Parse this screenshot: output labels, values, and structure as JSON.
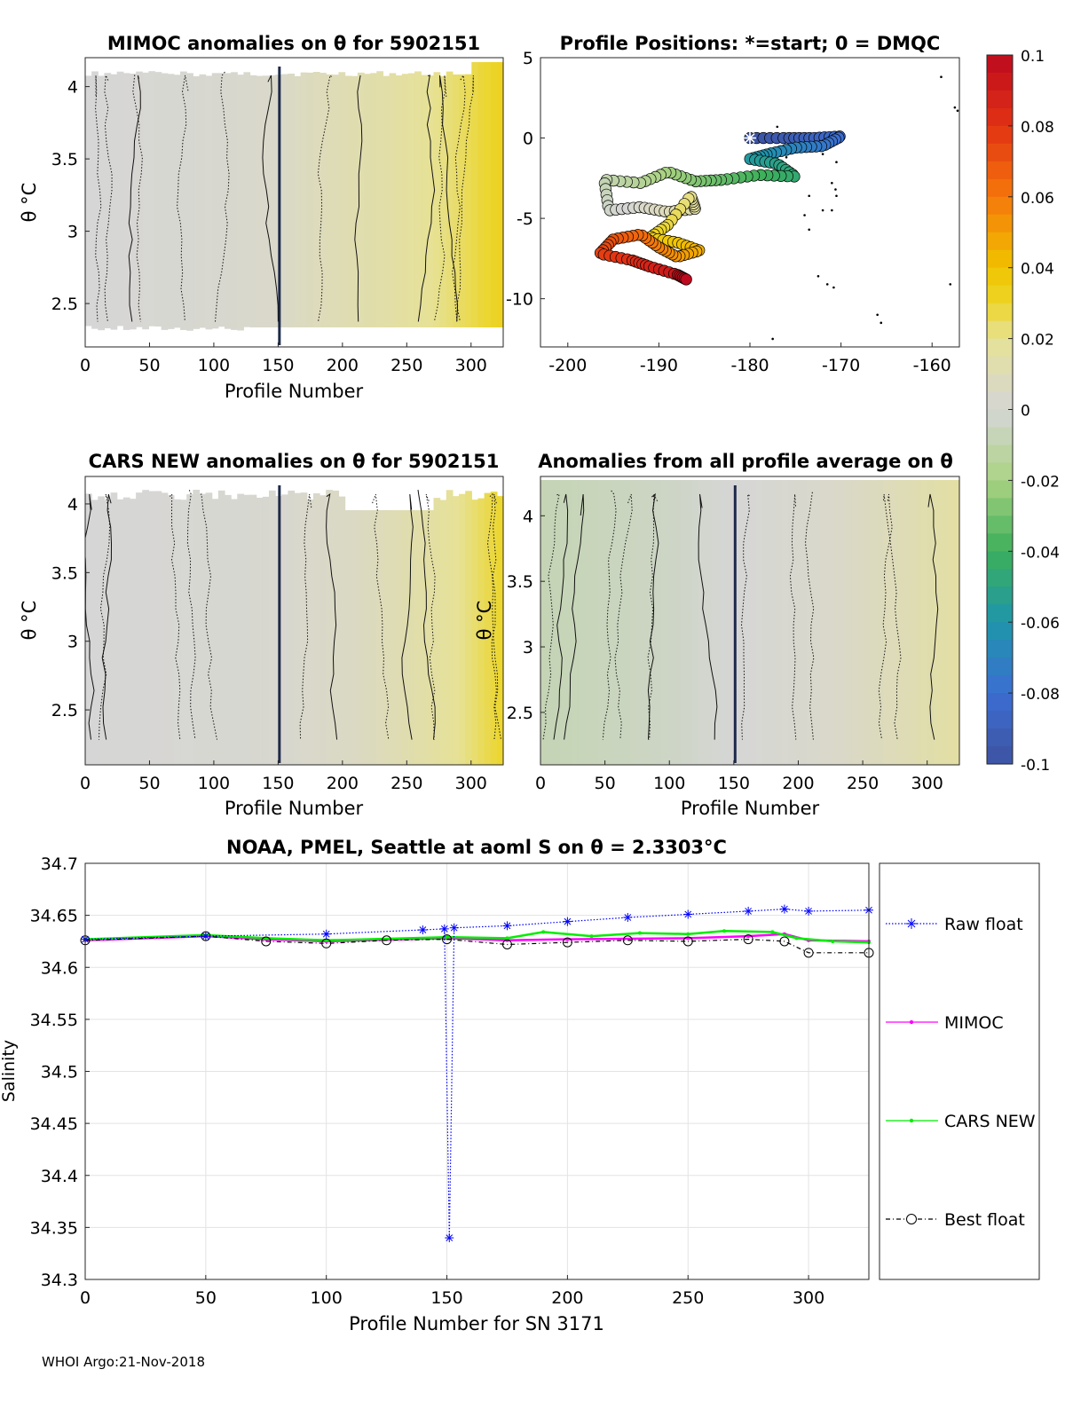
{
  "footer": "WHOI Argo:21-Nov-2018",
  "colorbar": {
    "ticks": [
      "0.1",
      "0.08",
      "0.06",
      "0.04",
      "0.02",
      "0",
      "-0.02",
      "-0.04",
      "-0.06",
      "-0.08",
      "-0.1"
    ],
    "range": [
      -0.1,
      0.1
    ]
  },
  "chart_data": [
    {
      "type": "heatmap",
      "title": "MIMOC anomalies on θ  for 5902151",
      "xlabel": "Profile Number",
      "ylabel": "θ °C",
      "xlim": [
        0,
        325
      ],
      "ylim": [
        2.2,
        4.2
      ],
      "xticks": [
        "0",
        "50",
        "100",
        "150",
        "200",
        "250",
        "300"
      ],
      "yticks": [
        "2.5",
        "3",
        "3.5",
        "4"
      ],
      "anomaly_by_profile": [
        {
          "x": 0,
          "v": 0.0
        },
        {
          "x": 100,
          "v": 0.002
        },
        {
          "x": 150,
          "v": 0.004
        },
        {
          "x": 175,
          "v": 0.008
        },
        {
          "x": 230,
          "v": 0.014
        },
        {
          "x": 280,
          "v": 0.022
        },
        {
          "x": 325,
          "v": 0.032
        }
      ]
    },
    {
      "type": "scatter",
      "title": "Profile Positions: *=start; 0 = DMQC",
      "xlim": [
        -203,
        -157
      ],
      "ylim": [
        -13,
        5
      ],
      "xticks": [
        "-200",
        "-190",
        "-180",
        "-170",
        "-160"
      ],
      "yticks": [
        "-10",
        "-5",
        "0",
        "5"
      ],
      "start": {
        "lon": -180.0,
        "lat": 0.0
      },
      "track": [
        {
          "lon": -180.0,
          "lat": 0.0
        },
        {
          "lon": -176.0,
          "lat": 0.0
        },
        {
          "lon": -173.0,
          "lat": 0.0
        },
        {
          "lon": -170.0,
          "lat": 0.1
        },
        {
          "lon": -172.0,
          "lat": -0.5
        },
        {
          "lon": -175.0,
          "lat": -0.6
        },
        {
          "lon": -178.0,
          "lat": -1.0
        },
        {
          "lon": -180.0,
          "lat": -1.3
        },
        {
          "lon": -177.0,
          "lat": -1.6
        },
        {
          "lon": -175.0,
          "lat": -2.4
        },
        {
          "lon": -179.0,
          "lat": -2.3
        },
        {
          "lon": -183.0,
          "lat": -2.6
        },
        {
          "lon": -186.0,
          "lat": -2.7
        },
        {
          "lon": -189.0,
          "lat": -2.1
        },
        {
          "lon": -192.0,
          "lat": -2.8
        },
        {
          "lon": -196.0,
          "lat": -2.6
        },
        {
          "lon": -195.5,
          "lat": -4.5
        },
        {
          "lon": -192.0,
          "lat": -4.3
        },
        {
          "lon": -189.0,
          "lat": -4.6
        },
        {
          "lon": -186.0,
          "lat": -4.4
        },
        {
          "lon": -186.5,
          "lat": -3.6
        },
        {
          "lon": -189.0,
          "lat": -5.4
        },
        {
          "lon": -191.0,
          "lat": -6.2
        },
        {
          "lon": -188.0,
          "lat": -6.5
        },
        {
          "lon": -185.5,
          "lat": -7.0
        },
        {
          "lon": -188.0,
          "lat": -7.4
        },
        {
          "lon": -190.0,
          "lat": -6.8
        },
        {
          "lon": -192.0,
          "lat": -6.0
        },
        {
          "lon": -195.0,
          "lat": -6.3
        },
        {
          "lon": -196.5,
          "lat": -7.2
        },
        {
          "lon": -193.0,
          "lat": -7.6
        },
        {
          "lon": -191.0,
          "lat": -8.0
        },
        {
          "lon": -188.0,
          "lat": -8.5
        },
        {
          "lon": -187.0,
          "lat": -8.8
        }
      ],
      "other_profiles": [
        {
          "lon": -159.0,
          "lat": 3.8
        },
        {
          "lon": -157.5,
          "lat": 1.9
        },
        {
          "lon": -157.2,
          "lat": 1.7
        },
        {
          "lon": -172.0,
          "lat": -1.0
        },
        {
          "lon": -170.5,
          "lat": -1.5
        },
        {
          "lon": -176.0,
          "lat": -1.2
        },
        {
          "lon": -171.0,
          "lat": -2.8
        },
        {
          "lon": -170.6,
          "lat": -3.2
        },
        {
          "lon": -173.5,
          "lat": -3.6
        },
        {
          "lon": -170.5,
          "lat": -3.6
        },
        {
          "lon": -171.0,
          "lat": -4.5
        },
        {
          "lon": -172.0,
          "lat": -4.5
        },
        {
          "lon": -174.0,
          "lat": -4.8
        },
        {
          "lon": -173.5,
          "lat": -5.7
        },
        {
          "lon": -172.5,
          "lat": -8.6
        },
        {
          "lon": -171.5,
          "lat": -9.1
        },
        {
          "lon": -170.8,
          "lat": -9.3
        },
        {
          "lon": -158.0,
          "lat": -9.1
        },
        {
          "lon": -166.0,
          "lat": -11.0
        },
        {
          "lon": -165.6,
          "lat": -11.5
        },
        {
          "lon": -177.5,
          "lat": -12.5
        },
        {
          "lon": -177.0,
          "lat": 0.7
        }
      ]
    },
    {
      "type": "heatmap",
      "title": "CARS NEW anomalies on θ for 5902151",
      "xlabel": "Profile Number",
      "ylabel": "θ °C",
      "xlim": [
        0,
        325
      ],
      "ylim": [
        2.1,
        4.2
      ],
      "xticks": [
        "0",
        "50",
        "100",
        "150",
        "200",
        "250",
        "300"
      ],
      "yticks": [
        "2.5",
        "3",
        "3.5",
        "4"
      ],
      "anomaly_by_profile": [
        {
          "x": 0,
          "v": 0.0
        },
        {
          "x": 150,
          "v": 0.002
        },
        {
          "x": 210,
          "v": 0.006
        },
        {
          "x": 250,
          "v": 0.012
        },
        {
          "x": 290,
          "v": 0.02
        },
        {
          "x": 325,
          "v": 0.03
        }
      ]
    },
    {
      "type": "heatmap",
      "title": "Anomalies from all profile average on θ",
      "xlabel": "Profile Number",
      "ylabel": "θ °C",
      "xlim": [
        0,
        325
      ],
      "ylim": [
        2.1,
        4.3
      ],
      "xticks": [
        "0",
        "50",
        "100",
        "150",
        "200",
        "250",
        "300"
      ],
      "yticks": [
        "2.5",
        "3",
        "3.5",
        "4"
      ],
      "anomaly_by_profile": [
        {
          "x": 0,
          "v": -0.008
        },
        {
          "x": 100,
          "v": -0.004
        },
        {
          "x": 150,
          "v": 0.0
        },
        {
          "x": 230,
          "v": 0.004
        },
        {
          "x": 280,
          "v": 0.01
        },
        {
          "x": 325,
          "v": 0.016
        }
      ]
    },
    {
      "type": "line",
      "title": "NOAA, PMEL, Seattle at aoml S on θ = 2.3303°C",
      "xlabel": "Profile Number for SN 3171",
      "ylabel": "Salinity",
      "xlim": [
        0,
        325
      ],
      "ylim": [
        34.3,
        34.7
      ],
      "xticks": [
        "0",
        "50",
        "100",
        "150",
        "200",
        "250",
        "300"
      ],
      "yticks": [
        "34.3",
        "34.35",
        "34.4",
        "34.45",
        "34.5",
        "34.55",
        "34.6",
        "34.65",
        "34.7"
      ],
      "grid": true,
      "legend_position": "right",
      "series": [
        {
          "name": "Raw float",
          "color": "#0000ff",
          "marker": "asterisk",
          "points": [
            [
              0,
              34.627
            ],
            [
              50,
              34.63
            ],
            [
              100,
              34.632
            ],
            [
              140,
              34.636
            ],
            [
              149,
              34.637
            ],
            [
              151,
              34.34
            ],
            [
              153,
              34.638
            ],
            [
              175,
              34.64
            ],
            [
              200,
              34.644
            ],
            [
              225,
              34.648
            ],
            [
              250,
              34.651
            ],
            [
              275,
              34.654
            ],
            [
              290,
              34.656
            ],
            [
              300,
              34.654
            ],
            [
              325,
              34.655
            ]
          ]
        },
        {
          "name": "MIMOC",
          "color": "#ff00ff",
          "marker": "dot",
          "points": [
            [
              0,
              34.626
            ],
            [
              50,
              34.63
            ],
            [
              75,
              34.627
            ],
            [
              100,
              34.625
            ],
            [
              150,
              34.628
            ],
            [
              175,
              34.626
            ],
            [
              200,
              34.627
            ],
            [
              250,
              34.628
            ],
            [
              275,
              34.63
            ],
            [
              290,
              34.632
            ],
            [
              300,
              34.626
            ],
            [
              325,
              34.625
            ]
          ]
        },
        {
          "name": "CARS NEW",
          "color": "#00ee00",
          "marker": "dot",
          "points": [
            [
              0,
              34.627
            ],
            [
              50,
              34.631
            ],
            [
              75,
              34.628
            ],
            [
              100,
              34.626
            ],
            [
              150,
              34.629
            ],
            [
              175,
              34.628
            ],
            [
              190,
              34.634
            ],
            [
              210,
              34.63
            ],
            [
              230,
              34.633
            ],
            [
              250,
              34.632
            ],
            [
              265,
              34.635
            ],
            [
              285,
              34.634
            ],
            [
              295,
              34.628
            ],
            [
              310,
              34.625
            ],
            [
              325,
              34.624
            ]
          ]
        },
        {
          "name": "Best float",
          "color": "#000000",
          "marker": "circle",
          "points": [
            [
              0,
              34.626
            ],
            [
              50,
              34.63
            ],
            [
              75,
              34.625
            ],
            [
              100,
              34.623
            ],
            [
              125,
              34.626
            ],
            [
              150,
              34.627
            ],
            [
              175,
              34.622
            ],
            [
              200,
              34.624
            ],
            [
              225,
              34.626
            ],
            [
              250,
              34.625
            ],
            [
              275,
              34.627
            ],
            [
              290,
              34.625
            ],
            [
              300,
              34.614
            ],
            [
              325,
              34.614
            ]
          ]
        }
      ]
    }
  ]
}
